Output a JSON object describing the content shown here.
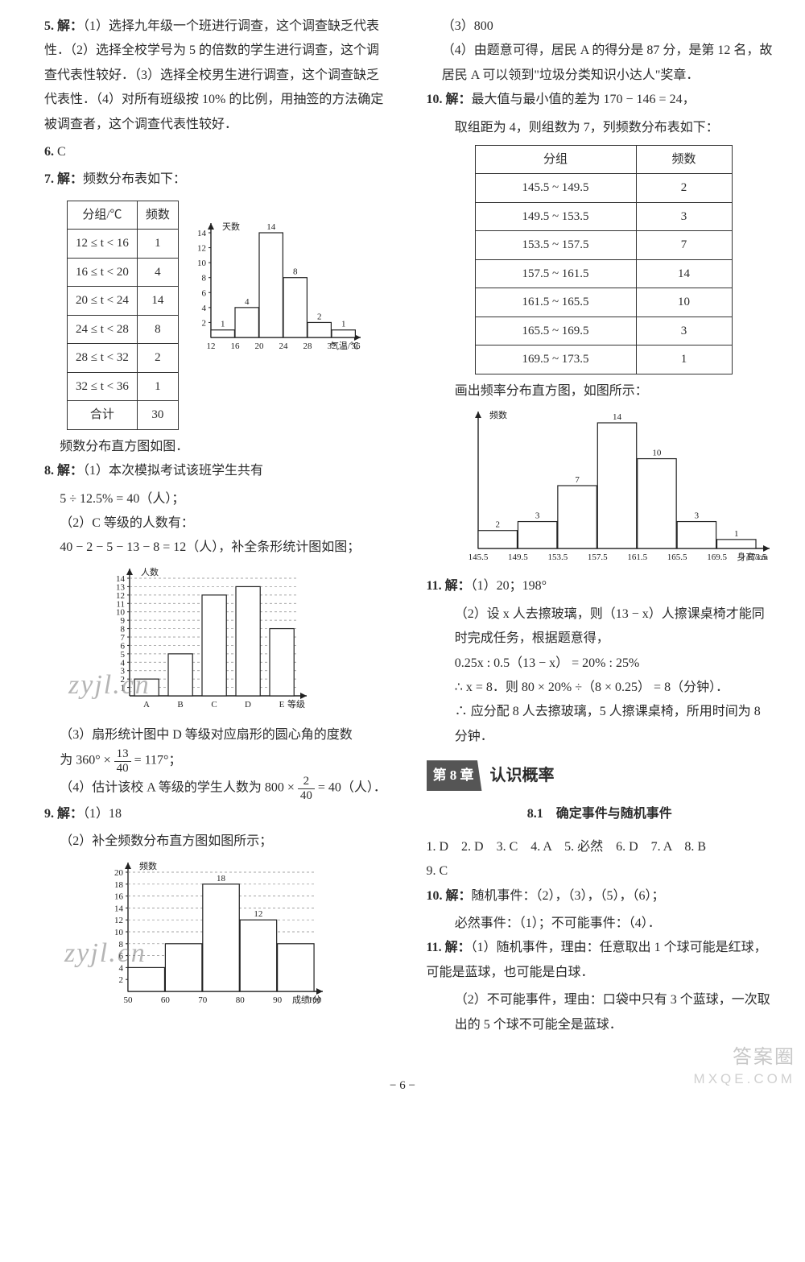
{
  "leftCol": {
    "q5": {
      "label": "5.",
      "prefix": "解：",
      "text": "（1）选择九年级一个班进行调查，这个调查缺乏代表性．（2）选择全校学号为 5 的倍数的学生进行调查，这个调查代表性较好．（3）选择全校男生进行调查，这个调查缺乏代表性．（4）对所有班级按 10% 的比例，用抽签的方法确定被调查者，这个调查代表性较好．"
    },
    "q6": {
      "label": "6.",
      "answer": "C"
    },
    "q7": {
      "label": "7.",
      "prefix": "解：",
      "text": "频数分布表如下：",
      "table": {
        "headers": [
          "分组/℃",
          "频数"
        ],
        "rows": [
          [
            "12 ≤ t < 16",
            "1"
          ],
          [
            "16 ≤ t < 20",
            "4"
          ],
          [
            "20 ≤ t < 24",
            "14"
          ],
          [
            "24 ≤ t < 28",
            "8"
          ],
          [
            "28 ≤ t < 32",
            "2"
          ],
          [
            "32 ≤ t < 36",
            "1"
          ],
          [
            "合计",
            "30"
          ]
        ]
      },
      "chart": {
        "type": "bar",
        "yLabel": "天数",
        "xLabel": "气温/℃",
        "xTicks": [
          "12",
          "16",
          "20",
          "24",
          "28",
          "32",
          "36"
        ],
        "yMax": 14,
        "yStep": 2,
        "values": [
          1,
          4,
          14,
          8,
          2,
          1
        ],
        "labels": [
          "1",
          "4",
          "14",
          "8",
          "2",
          "1"
        ],
        "barColor": "#ffffff",
        "barStroke": "#222222",
        "axisColor": "#222222",
        "font": 11
      },
      "after": "频数分布直方图如图．"
    },
    "q8": {
      "label": "8.",
      "prefix": "解：",
      "p1": "（1）本次模拟考试该班学生共有",
      "p1b": "5 ÷ 12.5% = 40（人）；",
      "p2": "（2）C 等级的人数有：",
      "p2b": "40 − 2 − 5 − 13 − 8 = 12（人），补全条形统计图如图；",
      "chart": {
        "type": "bar",
        "yLabel": "人数",
        "xLabel": "等级",
        "xCats": [
          "A",
          "B",
          "C",
          "D",
          "E"
        ],
        "yMax": 14,
        "yStep": 1,
        "values": [
          2,
          5,
          12,
          13,
          8
        ],
        "barColor": "#ffffff",
        "barStroke": "#222222",
        "axisColor": "#222222",
        "font": 11,
        "watermark": "zyjl.cn"
      },
      "p3a": "（3）扇形统计图中 D 等级对应扇形的圆心角的度数",
      "p3b_prefix": "为 360° × ",
      "p3b_frac_n": "13",
      "p3b_frac_d": "40",
      "p3b_suffix": " = 117°；",
      "p4_prefix": "（4）估计该校 A 等级的学生人数为 800 × ",
      "p4_frac_n": "2",
      "p4_frac_d": "40",
      "p4_suffix": " = 40（人）．"
    },
    "q9": {
      "label": "9.",
      "prefix": "解：",
      "p1": "（1）18",
      "p2": "（2）补全频数分布直方图如图所示；",
      "chart": {
        "type": "bar",
        "yLabel": "频数",
        "xLabel": "成绩/分",
        "xTicks": [
          "50",
          "60",
          "70",
          "80",
          "90",
          "100"
        ],
        "yMax": 20,
        "yStep": 2,
        "values": [
          4,
          8,
          18,
          12,
          8
        ],
        "labels": [
          "",
          "",
          "18",
          "12",
          ""
        ],
        "barColor": "#ffffff",
        "barStroke": "#222222",
        "axisColor": "#222222",
        "font": 11,
        "watermark": "zyjl.cn"
      }
    }
  },
  "rightCol": {
    "q9c": {
      "p3": "（3）800",
      "p4": "（4）由题意可得，居民 A 的得分是 87 分，是第 12 名，故居民 A 可以领到\"垃圾分类知识小达人\"奖章．"
    },
    "q10": {
      "label": "10.",
      "prefix": "解：",
      "p1": "最大值与最小值的差为 170 − 146 = 24，",
      "p2": "取组距为 4，则组数为 7，列频数分布表如下：",
      "table": {
        "headers": [
          "分组",
          "频数"
        ],
        "rows": [
          [
            "145.5 ~ 149.5",
            "2"
          ],
          [
            "149.5 ~ 153.5",
            "3"
          ],
          [
            "153.5 ~ 157.5",
            "7"
          ],
          [
            "157.5 ~ 161.5",
            "14"
          ],
          [
            "161.5 ~ 165.5",
            "10"
          ],
          [
            "165.5 ~ 169.5",
            "3"
          ],
          [
            "169.5 ~ 173.5",
            "1"
          ]
        ]
      },
      "p3": "画出频率分布直方图，如图所示：",
      "chart": {
        "type": "bar",
        "yLabel": "频数",
        "xLabel": "身高/cm",
        "xTicks": [
          "145.5",
          "149.5",
          "153.5",
          "157.5",
          "161.5",
          "165.5",
          "169.5",
          "173.5"
        ],
        "yMax": 14,
        "values": [
          2,
          3,
          7,
          14,
          10,
          3,
          1
        ],
        "labels": [
          "2",
          "3",
          "7",
          "14",
          "10",
          "3",
          "1"
        ],
        "barColor": "#ffffff",
        "barStroke": "#222222",
        "axisColor": "#222222",
        "font": 11
      }
    },
    "q11": {
      "label": "11.",
      "prefix": "解：",
      "p1": "（1）20；198°",
      "p2": "（2）设 x 人去擦玻璃，则（13 − x）人擦课桌椅才能同时完成任务，根据题意得，",
      "p3": "0.25x : 0.5（13 − x） = 20% : 25%",
      "p4": "∴ x = 8．则 80 × 20% ÷（8 × 0.25） = 8（分钟）．",
      "p5": "∴ 应分配 8 人去擦玻璃，5 人擦课桌椅，所用时间为 8 分钟．"
    },
    "chapter": {
      "tab": "第 8 章",
      "title": "认识概率"
    },
    "section": "8.1　确定事件与随机事件",
    "answers": {
      "line1": "1. D　2. D　3. C　4. A　5. 必然　6. D　7. A　8. B",
      "line2": "9. C"
    },
    "rq10": {
      "label": "10.",
      "prefix": "解：",
      "p1": "随机事件：（2），（3），（5），（6）；",
      "p2": "必然事件：（1）；不可能事件：（4）．"
    },
    "rq11": {
      "label": "11.",
      "prefix": "解：",
      "p1": "（1）随机事件，理由：任意取出 1 个球可能是红球，可能是蓝球，也可能是白球．",
      "p2": "（2）不可能事件，理由：口袋中只有 3 个蓝球，一次取出的 5 个球不可能全是蓝球．"
    }
  },
  "pageNumber": "− 6 −",
  "watermark": {
    "l1": "答案圈",
    "l2": "MXQE.COM"
  }
}
